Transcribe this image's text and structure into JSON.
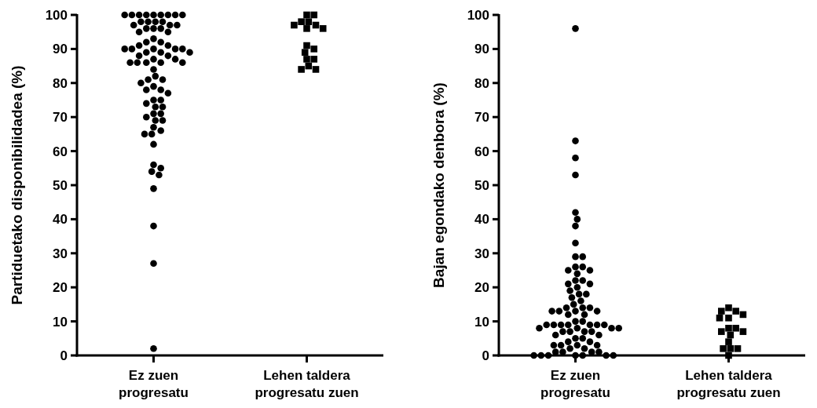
{
  "chart_data": [
    {
      "type": "scatter",
      "ylabel": "Partiduetako disponibilidadea (%)",
      "categories": [
        "Ez zuen progresatu",
        "Lehen taldera progresatu zuen"
      ],
      "ylim": [
        0,
        100
      ],
      "yticks": [
        0,
        10,
        20,
        30,
        40,
        50,
        60,
        70,
        80,
        90,
        100
      ],
      "grid": false,
      "series": [
        {
          "color": "#000000",
          "marker": "circle",
          "x": [
            "Ez zuen progresatu",
            "Ez zuen progresatu",
            "Ez zuen progresatu",
            "Ez zuen progresatu",
            "Ez zuen progresatu",
            "Ez zuen progresatu",
            "Ez zuen progresatu",
            "Ez zuen progresatu",
            "Ez zuen progresatu",
            "Ez zuen progresatu",
            "Ez zuen progresatu",
            "Ez zuen progresatu",
            "Ez zuen progresatu",
            "Ez zuen progresatu",
            "Ez zuen progresatu",
            "Ez zuen progresatu",
            "Ez zuen progresatu",
            "Ez zuen progresatu",
            "Ez zuen progresatu",
            "Ez zuen progresatu",
            "Ez zuen progresatu",
            "Ez zuen progresatu",
            "Ez zuen progresatu",
            "Ez zuen progresatu",
            "Ez zuen progresatu",
            "Ez zuen progresatu",
            "Ez zuen progresatu",
            "Ez zuen progresatu",
            "Ez zuen progresatu",
            "Ez zuen progresatu",
            "Ez zuen progresatu",
            "Ez zuen progresatu",
            "Ez zuen progresatu",
            "Ez zuen progresatu",
            "Ez zuen progresatu",
            "Ez zuen progresatu",
            "Ez zuen progresatu",
            "Ez zuen progresatu",
            "Ez zuen progresatu",
            "Ez zuen progresatu",
            "Ez zuen progresatu",
            "Ez zuen progresatu",
            "Ez zuen progresatu",
            "Ez zuen progresatu",
            "Ez zuen progresatu",
            "Ez zuen progresatu",
            "Ez zuen progresatu",
            "Ez zuen progresatu",
            "Ez zuen progresatu",
            "Ez zuen progresatu",
            "Ez zuen progresatu",
            "Ez zuen progresatu",
            "Ez zuen progresatu",
            "Ez zuen progresatu",
            "Ez zuen progresatu",
            "Ez zuen progresatu",
            "Ez zuen progresatu",
            "Ez zuen progresatu",
            "Ez zuen progresatu",
            "Ez zuen progresatu",
            "Ez zuen progresatu",
            "Ez zuen progresatu",
            "Ez zuen progresatu",
            "Ez zuen progresatu",
            "Ez zuen progresatu",
            "Ez zuen progresatu",
            "Ez zuen progresatu",
            "Ez zuen progresatu",
            "Ez zuen progresatu",
            "Ez zuen progresatu",
            "Ez zuen progresatu",
            "Ez zuen progresatu",
            "Ez zuen progresatu",
            "Ez zuen progresatu",
            "Ez zuen progresatu"
          ],
          "values": [
            100,
            100,
            100,
            100,
            100,
            100,
            100,
            100,
            100,
            98,
            98,
            98,
            98,
            97,
            97,
            97,
            96,
            96,
            96,
            95,
            95,
            93,
            92,
            92,
            91,
            91,
            90,
            90,
            90,
            90,
            90,
            89,
            89,
            89,
            88,
            88,
            87,
            87,
            86,
            86,
            86,
            86,
            86,
            84,
            82,
            81,
            81,
            80,
            79,
            78,
            78,
            77,
            75,
            75,
            74,
            73,
            73,
            71,
            71,
            70,
            69,
            69,
            67,
            66,
            65,
            65,
            62,
            56,
            55,
            54,
            53,
            49,
            38,
            27,
            2
          ]
        },
        {
          "color": "#000000",
          "marker": "square",
          "x": [
            "Lehen taldera progresatu zuen",
            "Lehen taldera progresatu zuen",
            "Lehen taldera progresatu zuen",
            "Lehen taldera progresatu zuen",
            "Lehen taldera progresatu zuen",
            "Lehen taldera progresatu zuen",
            "Lehen taldera progresatu zuen",
            "Lehen taldera progresatu zuen",
            "Lehen taldera progresatu zuen",
            "Lehen taldera progresatu zuen",
            "Lehen taldera progresatu zuen",
            "Lehen taldera progresatu zuen",
            "Lehen taldera progresatu zuen",
            "Lehen taldera progresatu zuen",
            "Lehen taldera progresatu zuen",
            "Lehen taldera progresatu zuen"
          ],
          "values": [
            100,
            100,
            98,
            98,
            97,
            97,
            96,
            96,
            91,
            90,
            89,
            87,
            87,
            85,
            84,
            84
          ]
        }
      ]
    },
    {
      "type": "scatter",
      "ylabel": "Bajan egondako denbora (%)",
      "categories": [
        "Ez zuen progresatu",
        "Lehen taldera progresatu zuen"
      ],
      "ylim": [
        0,
        100
      ],
      "yticks": [
        0,
        10,
        20,
        30,
        40,
        50,
        60,
        70,
        80,
        90,
        100
      ],
      "grid": false,
      "series": [
        {
          "color": "#000000",
          "marker": "circle",
          "x": [
            "Ez zuen progresatu",
            "Ez zuen progresatu",
            "Ez zuen progresatu",
            "Ez zuen progresatu",
            "Ez zuen progresatu",
            "Ez zuen progresatu",
            "Ez zuen progresatu",
            "Ez zuen progresatu",
            "Ez zuen progresatu",
            "Ez zuen progresatu",
            "Ez zuen progresatu",
            "Ez zuen progresatu",
            "Ez zuen progresatu",
            "Ez zuen progresatu",
            "Ez zuen progresatu",
            "Ez zuen progresatu",
            "Ez zuen progresatu",
            "Ez zuen progresatu",
            "Ez zuen progresatu",
            "Ez zuen progresatu",
            "Ez zuen progresatu",
            "Ez zuen progresatu",
            "Ez zuen progresatu",
            "Ez zuen progresatu",
            "Ez zuen progresatu",
            "Ez zuen progresatu",
            "Ez zuen progresatu",
            "Ez zuen progresatu",
            "Ez zuen progresatu",
            "Ez zuen progresatu",
            "Ez zuen progresatu",
            "Ez zuen progresatu",
            "Ez zuen progresatu",
            "Ez zuen progresatu",
            "Ez zuen progresatu",
            "Ez zuen progresatu",
            "Ez zuen progresatu",
            "Ez zuen progresatu",
            "Ez zuen progresatu",
            "Ez zuen progresatu",
            "Ez zuen progresatu",
            "Ez zuen progresatu",
            "Ez zuen progresatu",
            "Ez zuen progresatu",
            "Ez zuen progresatu",
            "Ez zuen progresatu",
            "Ez zuen progresatu",
            "Ez zuen progresatu",
            "Ez zuen progresatu",
            "Ez zuen progresatu",
            "Ez zuen progresatu",
            "Ez zuen progresatu",
            "Ez zuen progresatu",
            "Ez zuen progresatu",
            "Ez zuen progresatu",
            "Ez zuen progresatu",
            "Ez zuen progresatu",
            "Ez zuen progresatu",
            "Ez zuen progresatu",
            "Ez zuen progresatu",
            "Ez zuen progresatu",
            "Ez zuen progresatu",
            "Ez zuen progresatu",
            "Ez zuen progresatu",
            "Ez zuen progresatu",
            "Ez zuen progresatu",
            "Ez zuen progresatu",
            "Ez zuen progresatu",
            "Ez zuen progresatu",
            "Ez zuen progresatu",
            "Ez zuen progresatu",
            "Ez zuen progresatu",
            "Ez zuen progresatu",
            "Ez zuen progresatu",
            "Ez zuen progresatu"
          ],
          "values": [
            96,
            63,
            58,
            53,
            42,
            40,
            38,
            33,
            29,
            29,
            26,
            26,
            25,
            25,
            24,
            22,
            22,
            21,
            21,
            20,
            19,
            18,
            18,
            17,
            16,
            15,
            14,
            14,
            14,
            13,
            13,
            13,
            13,
            12,
            12,
            10,
            10,
            9,
            9,
            9,
            9,
            9,
            9,
            9,
            8,
            8,
            8,
            8,
            7,
            7,
            7,
            7,
            6,
            6,
            5,
            5,
            4,
            4,
            3,
            3,
            3,
            3,
            2,
            2,
            1,
            1,
            1,
            1,
            0,
            0,
            0,
            0,
            0,
            0,
            0
          ]
        },
        {
          "color": "#000000",
          "marker": "square",
          "x": [
            "Lehen taldera progresatu zuen",
            "Lehen taldera progresatu zuen",
            "Lehen taldera progresatu zuen",
            "Lehen taldera progresatu zuen",
            "Lehen taldera progresatu zuen",
            "Lehen taldera progresatu zuen",
            "Lehen taldera progresatu zuen",
            "Lehen taldera progresatu zuen",
            "Lehen taldera progresatu zuen",
            "Lehen taldera progresatu zuen",
            "Lehen taldera progresatu zuen",
            "Lehen taldera progresatu zuen",
            "Lehen taldera progresatu zuen",
            "Lehen taldera progresatu zuen",
            "Lehen taldera progresatu zuen",
            "Lehen taldera progresatu zuen"
          ],
          "values": [
            14,
            13,
            13,
            12,
            11,
            11,
            8,
            8,
            7,
            7,
            6,
            4,
            2,
            2,
            2,
            0
          ]
        }
      ]
    }
  ]
}
